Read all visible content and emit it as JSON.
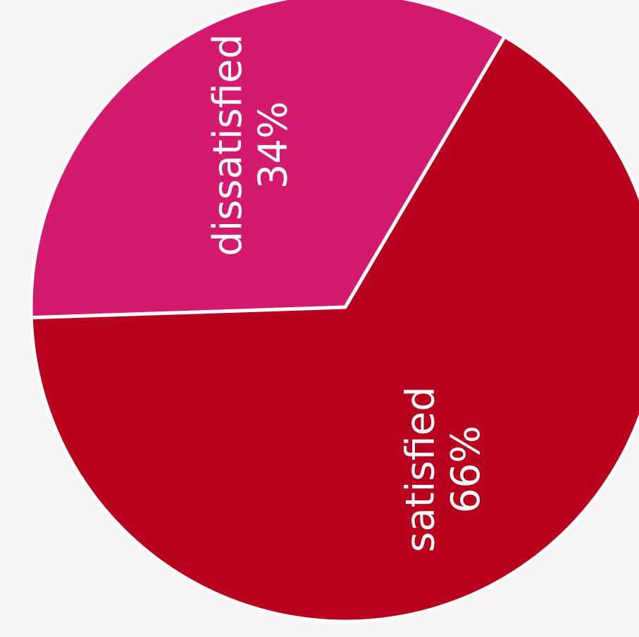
{
  "chart_data": {
    "type": "pie",
    "slices": [
      {
        "label": "dissatisfied",
        "value": 34,
        "value_label": "34%",
        "color": "#d41a6e"
      },
      {
        "label": "satisfied",
        "value": 66,
        "value_label": "66%",
        "color": "#b8001e"
      }
    ],
    "separator_color": "#ffffff",
    "label_color": "#ffffff",
    "background": "#f7f5f6"
  }
}
